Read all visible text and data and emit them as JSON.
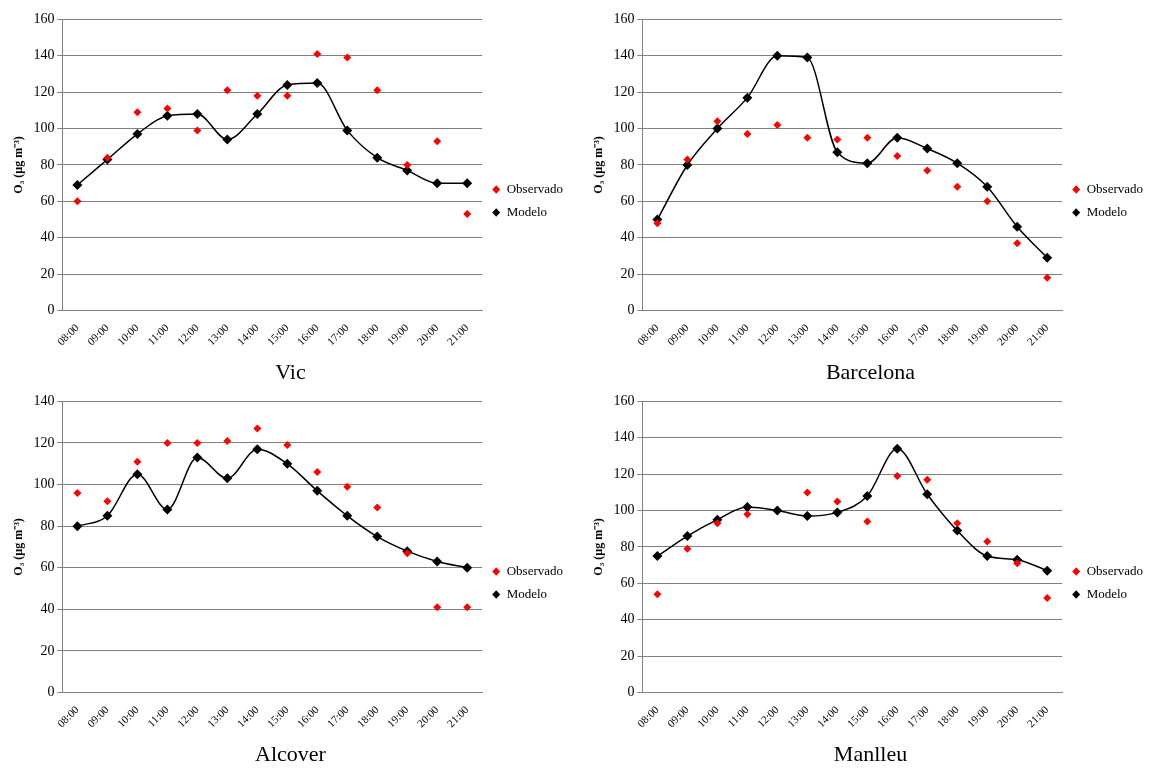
{
  "chart_data": [
    {
      "type": "line",
      "title": "Vic",
      "ylabel": "O₃ (µg m⁻³)",
      "categories": [
        "08:00",
        "09:00",
        "10:00",
        "11:00",
        "12:00",
        "13:00",
        "14:00",
        "15:00",
        "16:00",
        "17:00",
        "18:00",
        "19:00",
        "20:00",
        "21:00"
      ],
      "ylim": [
        0,
        160
      ],
      "yticks": [
        0,
        20,
        40,
        60,
        80,
        100,
        120,
        140,
        160
      ],
      "grid": "y",
      "legend": "right",
      "marker": "diamond",
      "series": [
        {
          "name": "Observado",
          "type": "scatter",
          "color": "#ff0000",
          "values": [
            60,
            84,
            109,
            111,
            99,
            121,
            118,
            118,
            141,
            139,
            121,
            80,
            93,
            53
          ]
        },
        {
          "name": "Modelo",
          "type": "line",
          "color": "#000000",
          "values": [
            69,
            83,
            97,
            107,
            108,
            94,
            108,
            124,
            125,
            99,
            84,
            77,
            70,
            70
          ]
        }
      ]
    },
    {
      "type": "line",
      "title": "Barcelona",
      "ylabel": "O₃ (µg m⁻³)",
      "categories": [
        "08:00",
        "09:00",
        "10:00",
        "11:00",
        "12:00",
        "13:00",
        "14:00",
        "15:00",
        "16:00",
        "17:00",
        "18:00",
        "19:00",
        "20:00",
        "21:00"
      ],
      "ylim": [
        0,
        160
      ],
      "yticks": [
        0,
        20,
        40,
        60,
        80,
        100,
        120,
        140,
        160
      ],
      "grid": "y",
      "legend": "right",
      "marker": "diamond",
      "series": [
        {
          "name": "Observado",
          "type": "scatter",
          "color": "#ff0000",
          "values": [
            48,
            83,
            104,
            97,
            102,
            95,
            94,
            95,
            85,
            77,
            68,
            60,
            37,
            18
          ]
        },
        {
          "name": "Modelo",
          "type": "line",
          "color": "#000000",
          "values": [
            50,
            80,
            100,
            117,
            140,
            139,
            87,
            81,
            95,
            89,
            81,
            68,
            46,
            29
          ]
        }
      ]
    },
    {
      "type": "line",
      "title": "Alcover",
      "ylabel": "O₃ (µg m⁻³)",
      "categories": [
        "08:00",
        "09:00",
        "10:00",
        "11:00",
        "12:00",
        "13:00",
        "14:00",
        "15:00",
        "16:00",
        "17:00",
        "18:00",
        "19:00",
        "20:00",
        "21:00"
      ],
      "ylim": [
        0,
        140
      ],
      "yticks": [
        0,
        20,
        40,
        60,
        80,
        100,
        120,
        140
      ],
      "grid": "y",
      "legend": "right",
      "marker": "diamond",
      "series": [
        {
          "name": "Observado",
          "type": "scatter",
          "color": "#ff0000",
          "values": [
            96,
            92,
            111,
            120,
            120,
            121,
            127,
            119,
            106,
            99,
            89,
            67,
            41,
            41
          ]
        },
        {
          "name": "Modelo",
          "type": "line",
          "color": "#000000",
          "values": [
            80,
            85,
            105,
            88,
            113,
            103,
            117,
            110,
            97,
            85,
            75,
            68,
            63,
            60
          ]
        }
      ]
    },
    {
      "type": "line",
      "title": "Manlleu",
      "ylabel": "O₃ (µg m⁻³)",
      "categories": [
        "08:00",
        "09:00",
        "10:00",
        "11:00",
        "12:00",
        "13:00",
        "14:00",
        "15:00",
        "16:00",
        "17:00",
        "18:00",
        "19:00",
        "20:00",
        "21:00"
      ],
      "ylim": [
        0,
        160
      ],
      "yticks": [
        0,
        20,
        40,
        60,
        80,
        100,
        120,
        140,
        160
      ],
      "grid": "y",
      "legend": "right",
      "marker": "diamond",
      "series": [
        {
          "name": "Observado",
          "type": "scatter",
          "color": "#ff0000",
          "values": [
            54,
            79,
            93,
            98,
            null,
            110,
            105,
            94,
            119,
            117,
            93,
            83,
            71,
            52
          ]
        },
        {
          "name": "Modelo",
          "type": "line",
          "color": "#000000",
          "values": [
            75,
            86,
            95,
            102,
            100,
            97,
            99,
            108,
            134,
            109,
            89,
            75,
            73,
            67
          ]
        }
      ]
    }
  ]
}
